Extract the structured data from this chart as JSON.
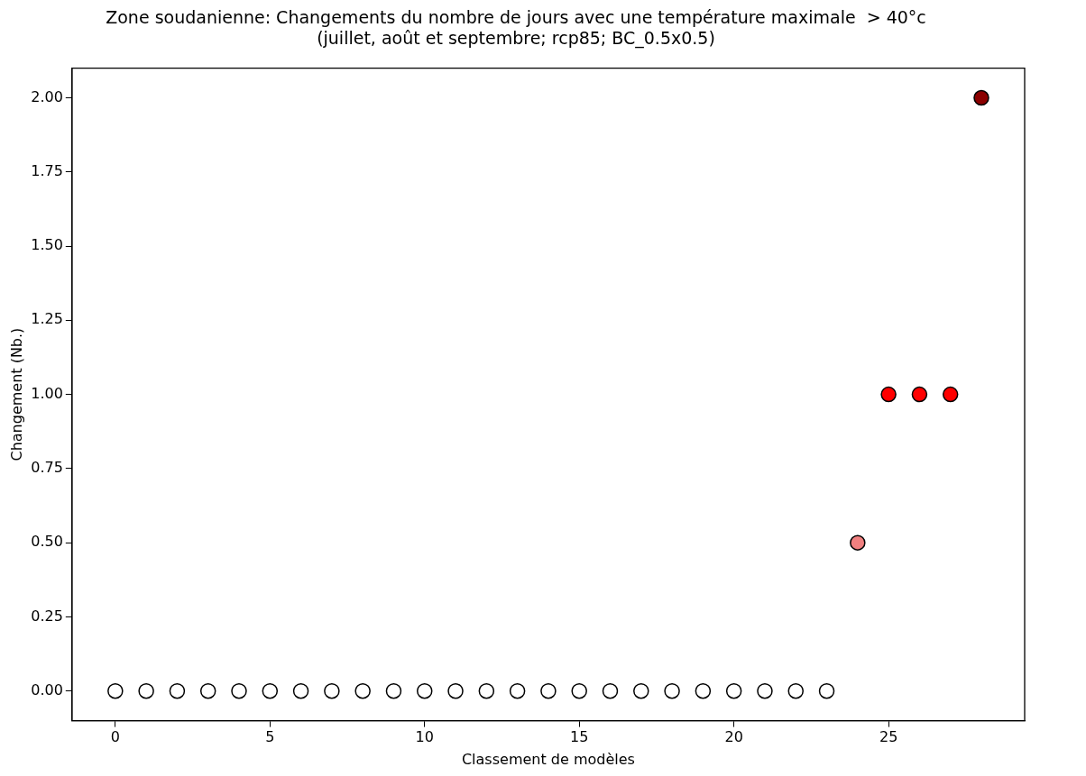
{
  "chart_data": {
    "type": "scatter",
    "title": "Zone soudanienne: Changements du nombre de jours avec une température maximale  > 40°c",
    "subtitle": "(juillet, août et septembre; rcp85; BC_0.5x0.5)",
    "xlabel": "Classement de modèles",
    "ylabel": "Changement (Nb.)",
    "x": [
      0,
      1,
      2,
      3,
      4,
      5,
      6,
      7,
      8,
      9,
      10,
      11,
      12,
      13,
      14,
      15,
      16,
      17,
      18,
      19,
      20,
      21,
      22,
      23,
      24,
      25,
      26,
      27,
      28
    ],
    "values": [
      0,
      0,
      0,
      0,
      0,
      0,
      0,
      0,
      0,
      0,
      0,
      0,
      0,
      0,
      0,
      0,
      0,
      0,
      0,
      0,
      0,
      0,
      0,
      0,
      0.5,
      1,
      1,
      1,
      2
    ],
    "colors": [
      "#ffffff",
      "#ffffff",
      "#ffffff",
      "#ffffff",
      "#ffffff",
      "#ffffff",
      "#ffffff",
      "#ffffff",
      "#ffffff",
      "#ffffff",
      "#ffffff",
      "#ffffff",
      "#ffffff",
      "#ffffff",
      "#ffffff",
      "#ffffff",
      "#ffffff",
      "#ffffff",
      "#ffffff",
      "#ffffff",
      "#ffffff",
      "#ffffff",
      "#ffffff",
      "#ffffff",
      "#f08080",
      "#ff0000",
      "#ff0000",
      "#ff0000",
      "#8b0000"
    ],
    "xlim": [
      -1.4,
      29.4
    ],
    "xticks": [
      0,
      5,
      10,
      15,
      20,
      25
    ],
    "ylim": [
      -0.1,
      2.1
    ],
    "yticks": [
      {
        "value": 0,
        "label": "0.00"
      },
      {
        "value": 0.25,
        "label": "0.25"
      },
      {
        "value": 0.5,
        "label": "0.50"
      },
      {
        "value": 0.75,
        "label": "0.75"
      },
      {
        "value": 1,
        "label": "1.00"
      },
      {
        "value": 1.25,
        "label": "1.25"
      },
      {
        "value": 1.5,
        "label": "1.50"
      },
      {
        "value": 1.75,
        "label": "1.75"
      },
      {
        "value": 2,
        "label": "2.00"
      }
    ],
    "grid": false,
    "legend": false,
    "marker": "circle"
  }
}
